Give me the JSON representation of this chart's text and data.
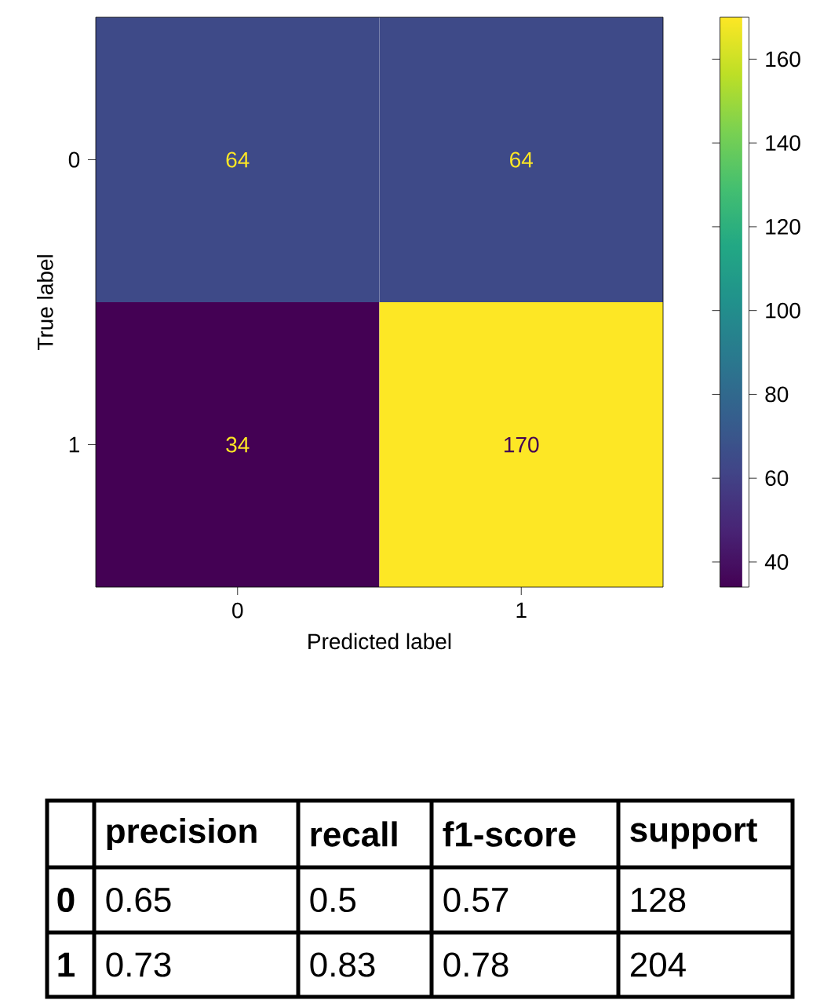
{
  "chart_data": [
    {
      "type": "heatmap",
      "xlabel": "Predicted label",
      "ylabel": "True label",
      "categories": [
        "0",
        "1"
      ],
      "y_categories": [
        "0",
        "1"
      ],
      "cells": [
        [
          64,
          64
        ],
        [
          34,
          170
        ]
      ],
      "clim": [
        34,
        170
      ],
      "cticks": [
        40,
        60,
        80,
        100,
        120,
        140,
        160
      ],
      "data_labels": true
    },
    {
      "type": "heatmap",
      "categories": [
        "precision",
        "recall",
        "f1-score",
        "support"
      ],
      "y_categories": [
        "0",
        "1"
      ],
      "cells": [
        [
          0.65,
          0.5,
          0.57,
          128
        ],
        [
          0.73,
          0.83,
          0.78,
          204
        ]
      ],
      "data_labels": true
    }
  ]
}
